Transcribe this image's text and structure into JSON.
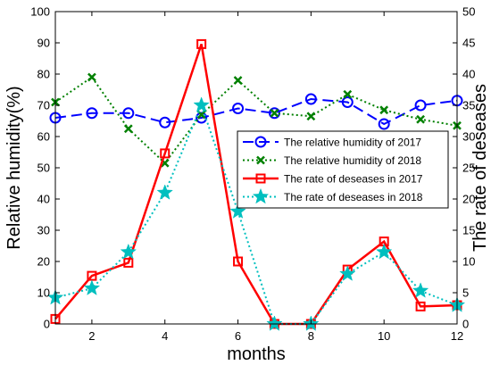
{
  "chart_data": {
    "type": "line",
    "x": [
      1,
      2,
      3,
      4,
      5,
      6,
      7,
      8,
      9,
      10,
      11,
      12
    ],
    "xlabel": "months",
    "xlim": [
      1,
      12
    ],
    "xticks": [
      2,
      4,
      6,
      8,
      10,
      12
    ],
    "xtick_labels": [
      "2",
      "4",
      "6",
      "8",
      "10",
      "12"
    ],
    "ylabel_left": "Relative humidity(%)",
    "ylim_left": [
      0,
      100
    ],
    "yticks_left": [
      0,
      10,
      20,
      30,
      40,
      50,
      60,
      70,
      80,
      90,
      100
    ],
    "ytick_labels_left": [
      "0",
      "10",
      "20",
      "30",
      "40",
      "50",
      "60",
      "70",
      "80",
      "90",
      "100"
    ],
    "ylabel_right": "The rate of deseases",
    "ylim_right": [
      0,
      50
    ],
    "yticks_right": [
      0,
      5,
      10,
      15,
      20,
      25,
      30,
      35,
      40,
      45,
      50
    ],
    "ytick_labels_right": [
      "0",
      "5",
      "10",
      "15",
      "20",
      "25",
      "30",
      "35",
      "40",
      "45",
      "50"
    ],
    "grid": false,
    "legend_position": "center-right",
    "series": [
      {
        "name": "The relative humidity of 2017",
        "axis": "left",
        "color": "#0000ff",
        "line_style": "dashed",
        "marker": "circle",
        "values": [
          66,
          67.5,
          67.5,
          64.5,
          66,
          69,
          67.5,
          72,
          71,
          64,
          70,
          71.5
        ]
      },
      {
        "name": "The relative humidity of 2018",
        "axis": "left",
        "color": "#008000",
        "line_style": "dotted",
        "marker": "x",
        "values": [
          71,
          79,
          62.5,
          51.5,
          67,
          78,
          67.5,
          66.5,
          73.5,
          68.5,
          65.5,
          63.5
        ]
      },
      {
        "name": "The rate of deseases in 2017",
        "axis": "right",
        "color": "#ff0000",
        "line_style": "solid",
        "marker": "square",
        "values": [
          0.8,
          7.7,
          9.8,
          27.3,
          44.8,
          10,
          0,
          0,
          8.7,
          13.2,
          2.8,
          3
        ]
      },
      {
        "name": "The rate of deseases in 2018",
        "axis": "right",
        "color": "#00bfbf",
        "line_style": "dotted",
        "marker": "star",
        "values": [
          4.2,
          5.7,
          11.5,
          21,
          35,
          18,
          0,
          0,
          8,
          11.5,
          5.3,
          3
        ]
      }
    ]
  }
}
